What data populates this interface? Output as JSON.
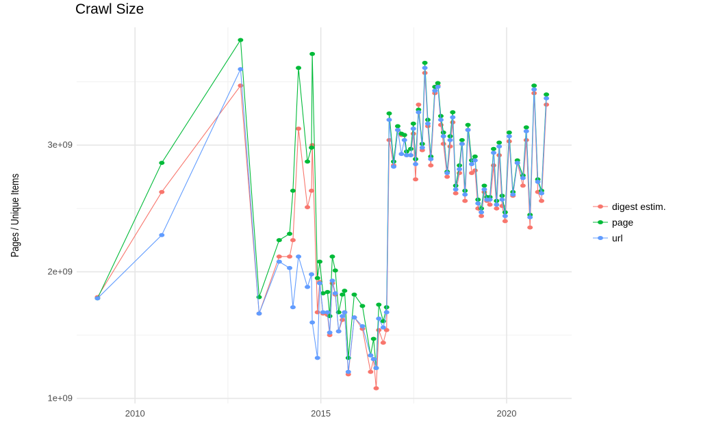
{
  "chart_data": {
    "type": "line",
    "title": "Crawl Size",
    "xlabel": "",
    "ylabel": "Pages / Unique Items",
    "xlim": [
      2008.43,
      2021.75
    ],
    "ylim": [
      960000000.0,
      3930000000.0
    ],
    "x_ticks": [
      2010,
      2015,
      2020
    ],
    "x_tick_labels": [
      "2010",
      "2015",
      "2020"
    ],
    "y_ticks": [
      1000000000.0,
      2000000000.0,
      3000000000.0
    ],
    "y_tick_labels": [
      "1e+09",
      "2e+09",
      "3e+09"
    ],
    "grid": true,
    "legend_position": "right",
    "markers": true,
    "x": [
      2008.99,
      2010.72,
      2012.84,
      2013.34,
      2013.88,
      2014.16,
      2014.25,
      2014.4,
      2014.64,
      2014.75,
      2014.77,
      2014.91,
      2014.97,
      2015.06,
      2015.18,
      2015.24,
      2015.31,
      2015.39,
      2015.48,
      2015.58,
      2015.64,
      2015.74,
      2015.9,
      2016.12,
      2016.34,
      2016.42,
      2016.49,
      2016.56,
      2016.68,
      2016.77,
      2016.84,
      2016.96,
      2017.07,
      2017.17,
      2017.25,
      2017.31,
      2017.42,
      2017.49,
      2017.55,
      2017.63,
      2017.73,
      2017.8,
      2017.88,
      2017.96,
      2018.07,
      2018.15,
      2018.23,
      2018.3,
      2018.4,
      2018.48,
      2018.55,
      2018.63,
      2018.73,
      2018.8,
      2018.88,
      2018.96,
      2019.06,
      2019.15,
      2019.23,
      2019.32,
      2019.4,
      2019.47,
      2019.55,
      2019.65,
      2019.73,
      2019.8,
      2019.88,
      2019.96,
      2020.07,
      2020.17,
      2020.29,
      2020.44,
      2020.53,
      2020.63,
      2020.74,
      2020.84,
      2020.94,
      2021.07
    ],
    "series": [
      {
        "name": "digest estim.",
        "color": "#F8766D",
        "values": [
          1800000000.0,
          2630000000.0,
          3470000000.0,
          1670000000.0,
          2120000000.0,
          2120000000.0,
          2250000000.0,
          3130000000.0,
          2510000000.0,
          2640000000.0,
          3000000000.0,
          1680000000.0,
          1920000000.0,
          1670000000.0,
          1660000000.0,
          1500000000.0,
          1910000000.0,
          1820000000.0,
          1530000000.0,
          1620000000.0,
          1680000000.0,
          1190000000.0,
          1640000000.0,
          1550000000.0,
          1210000000.0,
          1310000000.0,
          1080000000.0,
          1540000000.0,
          1440000000.0,
          1540000000.0,
          3040000000.0,
          2840000000.0,
          3120000000.0,
          3080000000.0,
          3080000000.0,
          2920000000.0,
          2920000000.0,
          3090000000.0,
          2730000000.0,
          3320000000.0,
          2960000000.0,
          3570000000.0,
          3150000000.0,
          2840000000.0,
          3410000000.0,
          3470000000.0,
          3160000000.0,
          3010000000.0,
          2750000000.0,
          2990000000.0,
          3180000000.0,
          2620000000.0,
          2780000000.0,
          3010000000.0,
          2560000000.0,
          3120000000.0,
          2780000000.0,
          2800000000.0,
          2500000000.0,
          2440000000.0,
          2630000000.0,
          2560000000.0,
          2530000000.0,
          2840000000.0,
          2500000000.0,
          2920000000.0,
          2520000000.0,
          2400000000.0,
          3030000000.0,
          2600000000.0,
          2860000000.0,
          2680000000.0,
          3040000000.0,
          2350000000.0,
          3410000000.0,
          2630000000.0,
          2560000000.0,
          3320000000.0
        ]
      },
      {
        "name": "page",
        "color": "#00BA38",
        "values": [
          1790000000.0,
          2860000000.0,
          3830000000.0,
          1800000000.0,
          2250000000.0,
          2300000000.0,
          2640000000.0,
          3610000000.0,
          2870000000.0,
          2980000000.0,
          3720000000.0,
          1950000000.0,
          2080000000.0,
          1830000000.0,
          1840000000.0,
          1650000000.0,
          2120000000.0,
          2010000000.0,
          1680000000.0,
          1820000000.0,
          1850000000.0,
          1320000000.0,
          1820000000.0,
          1730000000.0,
          1340000000.0,
          1470000000.0,
          1240000000.0,
          1740000000.0,
          1610000000.0,
          1720000000.0,
          3250000000.0,
          2870000000.0,
          3150000000.0,
          3090000000.0,
          3080000000.0,
          2950000000.0,
          2970000000.0,
          3170000000.0,
          2890000000.0,
          3280000000.0,
          3010000000.0,
          3650000000.0,
          3200000000.0,
          2910000000.0,
          3460000000.0,
          3490000000.0,
          3230000000.0,
          3100000000.0,
          2790000000.0,
          3070000000.0,
          3260000000.0,
          2680000000.0,
          2840000000.0,
          3040000000.0,
          2640000000.0,
          3160000000.0,
          2880000000.0,
          2910000000.0,
          2570000000.0,
          2500000000.0,
          2680000000.0,
          2590000000.0,
          2590000000.0,
          2970000000.0,
          2560000000.0,
          3020000000.0,
          2600000000.0,
          2470000000.0,
          3100000000.0,
          2630000000.0,
          2880000000.0,
          2760000000.0,
          3140000000.0,
          2450000000.0,
          3470000000.0,
          2730000000.0,
          2640000000.0,
          3400000000.0
        ]
      },
      {
        "name": "url",
        "color": "#619CFF",
        "values": [
          1790000000.0,
          2290000000.0,
          3600000000.0,
          1670000000.0,
          2080000000.0,
          2030000000.0,
          1720000000.0,
          2120000000.0,
          1880000000.0,
          1980000000.0,
          1600000000.0,
          1320000000.0,
          1910000000.0,
          1680000000.0,
          1680000000.0,
          1520000000.0,
          1930000000.0,
          1830000000.0,
          1530000000.0,
          1650000000.0,
          1680000000.0,
          1210000000.0,
          1640000000.0,
          1570000000.0,
          1340000000.0,
          1310000000.0,
          1240000000.0,
          1630000000.0,
          1560000000.0,
          1680000000.0,
          3200000000.0,
          2830000000.0,
          3120000000.0,
          2930000000.0,
          3040000000.0,
          2920000000.0,
          2920000000.0,
          3130000000.0,
          2850000000.0,
          3260000000.0,
          2980000000.0,
          3610000000.0,
          3170000000.0,
          2890000000.0,
          3430000000.0,
          3460000000.0,
          3200000000.0,
          3070000000.0,
          2780000000.0,
          3040000000.0,
          3220000000.0,
          2650000000.0,
          2810000000.0,
          3010000000.0,
          2610000000.0,
          3120000000.0,
          2850000000.0,
          2880000000.0,
          2540000000.0,
          2470000000.0,
          2650000000.0,
          2570000000.0,
          2570000000.0,
          2940000000.0,
          2530000000.0,
          2990000000.0,
          2570000000.0,
          2440000000.0,
          3070000000.0,
          2610000000.0,
          2860000000.0,
          2740000000.0,
          3110000000.0,
          2430000000.0,
          3440000000.0,
          2710000000.0,
          2620000000.0,
          3370000000.0
        ]
      }
    ]
  }
}
